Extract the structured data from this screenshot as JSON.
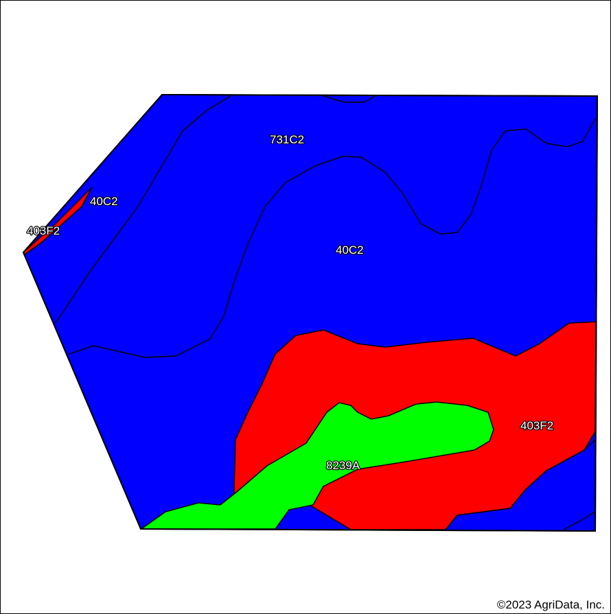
{
  "map": {
    "copyright": "©2023 AgriData, Inc.",
    "colors": {
      "blue_unit": "#0000ff",
      "red_unit": "#ff0000",
      "green_unit": "#00ff00",
      "boundary": "#000000"
    },
    "soil_units": [
      {
        "symbol": "731C2",
        "color": "#0000ff"
      },
      {
        "symbol": "40C2",
        "color": "#0000ff"
      },
      {
        "symbol": "40C2",
        "color": "#0000ff"
      },
      {
        "symbol": "403F2",
        "color": "#ff0000"
      },
      {
        "symbol": "403F2",
        "color": "#ff0000"
      },
      {
        "symbol": "8239A",
        "color": "#00ff00"
      }
    ]
  }
}
